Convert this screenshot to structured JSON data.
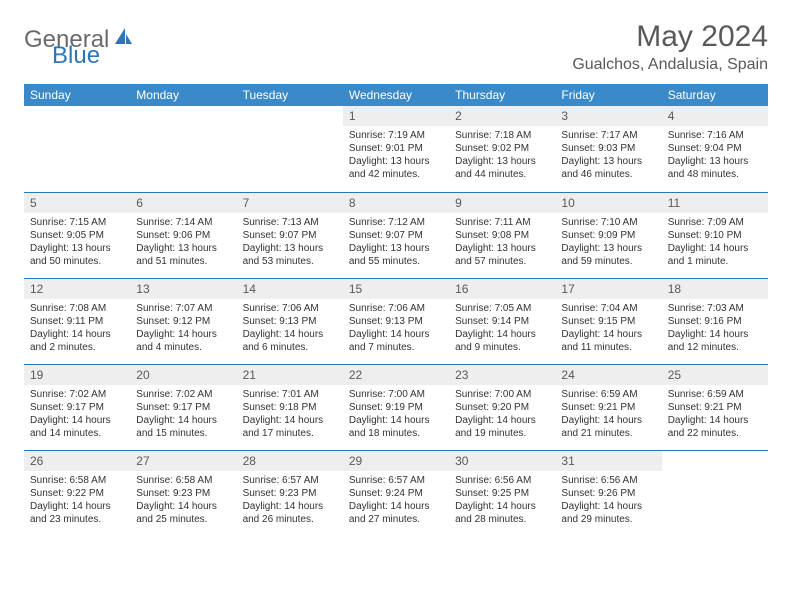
{
  "logo": {
    "general": "General",
    "blue": "Blue"
  },
  "title": "May 2024",
  "location": "Gualchos, Andalusia, Spain",
  "colors": {
    "header_bg": "#3a8ac9",
    "border": "#2e75b6",
    "daynum_bg": "#eeeeee",
    "text_gray": "#595959"
  },
  "weekdays": [
    "Sunday",
    "Monday",
    "Tuesday",
    "Wednesday",
    "Thursday",
    "Friday",
    "Saturday"
  ],
  "weeks": [
    [
      null,
      null,
      null,
      {
        "n": "1",
        "sr": "Sunrise: 7:19 AM",
        "ss": "Sunset: 9:01 PM",
        "dl": "Daylight: 13 hours and 42 minutes."
      },
      {
        "n": "2",
        "sr": "Sunrise: 7:18 AM",
        "ss": "Sunset: 9:02 PM",
        "dl": "Daylight: 13 hours and 44 minutes."
      },
      {
        "n": "3",
        "sr": "Sunrise: 7:17 AM",
        "ss": "Sunset: 9:03 PM",
        "dl": "Daylight: 13 hours and 46 minutes."
      },
      {
        "n": "4",
        "sr": "Sunrise: 7:16 AM",
        "ss": "Sunset: 9:04 PM",
        "dl": "Daylight: 13 hours and 48 minutes."
      }
    ],
    [
      {
        "n": "5",
        "sr": "Sunrise: 7:15 AM",
        "ss": "Sunset: 9:05 PM",
        "dl": "Daylight: 13 hours and 50 minutes."
      },
      {
        "n": "6",
        "sr": "Sunrise: 7:14 AM",
        "ss": "Sunset: 9:06 PM",
        "dl": "Daylight: 13 hours and 51 minutes."
      },
      {
        "n": "7",
        "sr": "Sunrise: 7:13 AM",
        "ss": "Sunset: 9:07 PM",
        "dl": "Daylight: 13 hours and 53 minutes."
      },
      {
        "n": "8",
        "sr": "Sunrise: 7:12 AM",
        "ss": "Sunset: 9:07 PM",
        "dl": "Daylight: 13 hours and 55 minutes."
      },
      {
        "n": "9",
        "sr": "Sunrise: 7:11 AM",
        "ss": "Sunset: 9:08 PM",
        "dl": "Daylight: 13 hours and 57 minutes."
      },
      {
        "n": "10",
        "sr": "Sunrise: 7:10 AM",
        "ss": "Sunset: 9:09 PM",
        "dl": "Daylight: 13 hours and 59 minutes."
      },
      {
        "n": "11",
        "sr": "Sunrise: 7:09 AM",
        "ss": "Sunset: 9:10 PM",
        "dl": "Daylight: 14 hours and 1 minute."
      }
    ],
    [
      {
        "n": "12",
        "sr": "Sunrise: 7:08 AM",
        "ss": "Sunset: 9:11 PM",
        "dl": "Daylight: 14 hours and 2 minutes."
      },
      {
        "n": "13",
        "sr": "Sunrise: 7:07 AM",
        "ss": "Sunset: 9:12 PM",
        "dl": "Daylight: 14 hours and 4 minutes."
      },
      {
        "n": "14",
        "sr": "Sunrise: 7:06 AM",
        "ss": "Sunset: 9:13 PM",
        "dl": "Daylight: 14 hours and 6 minutes."
      },
      {
        "n": "15",
        "sr": "Sunrise: 7:06 AM",
        "ss": "Sunset: 9:13 PM",
        "dl": "Daylight: 14 hours and 7 minutes."
      },
      {
        "n": "16",
        "sr": "Sunrise: 7:05 AM",
        "ss": "Sunset: 9:14 PM",
        "dl": "Daylight: 14 hours and 9 minutes."
      },
      {
        "n": "17",
        "sr": "Sunrise: 7:04 AM",
        "ss": "Sunset: 9:15 PM",
        "dl": "Daylight: 14 hours and 11 minutes."
      },
      {
        "n": "18",
        "sr": "Sunrise: 7:03 AM",
        "ss": "Sunset: 9:16 PM",
        "dl": "Daylight: 14 hours and 12 minutes."
      }
    ],
    [
      {
        "n": "19",
        "sr": "Sunrise: 7:02 AM",
        "ss": "Sunset: 9:17 PM",
        "dl": "Daylight: 14 hours and 14 minutes."
      },
      {
        "n": "20",
        "sr": "Sunrise: 7:02 AM",
        "ss": "Sunset: 9:17 PM",
        "dl": "Daylight: 14 hours and 15 minutes."
      },
      {
        "n": "21",
        "sr": "Sunrise: 7:01 AM",
        "ss": "Sunset: 9:18 PM",
        "dl": "Daylight: 14 hours and 17 minutes."
      },
      {
        "n": "22",
        "sr": "Sunrise: 7:00 AM",
        "ss": "Sunset: 9:19 PM",
        "dl": "Daylight: 14 hours and 18 minutes."
      },
      {
        "n": "23",
        "sr": "Sunrise: 7:00 AM",
        "ss": "Sunset: 9:20 PM",
        "dl": "Daylight: 14 hours and 19 minutes."
      },
      {
        "n": "24",
        "sr": "Sunrise: 6:59 AM",
        "ss": "Sunset: 9:21 PM",
        "dl": "Daylight: 14 hours and 21 minutes."
      },
      {
        "n": "25",
        "sr": "Sunrise: 6:59 AM",
        "ss": "Sunset: 9:21 PM",
        "dl": "Daylight: 14 hours and 22 minutes."
      }
    ],
    [
      {
        "n": "26",
        "sr": "Sunrise: 6:58 AM",
        "ss": "Sunset: 9:22 PM",
        "dl": "Daylight: 14 hours and 23 minutes."
      },
      {
        "n": "27",
        "sr": "Sunrise: 6:58 AM",
        "ss": "Sunset: 9:23 PM",
        "dl": "Daylight: 14 hours and 25 minutes."
      },
      {
        "n": "28",
        "sr": "Sunrise: 6:57 AM",
        "ss": "Sunset: 9:23 PM",
        "dl": "Daylight: 14 hours and 26 minutes."
      },
      {
        "n": "29",
        "sr": "Sunrise: 6:57 AM",
        "ss": "Sunset: 9:24 PM",
        "dl": "Daylight: 14 hours and 27 minutes."
      },
      {
        "n": "30",
        "sr": "Sunrise: 6:56 AM",
        "ss": "Sunset: 9:25 PM",
        "dl": "Daylight: 14 hours and 28 minutes."
      },
      {
        "n": "31",
        "sr": "Sunrise: 6:56 AM",
        "ss": "Sunset: 9:26 PM",
        "dl": "Daylight: 14 hours and 29 minutes."
      },
      null
    ]
  ]
}
